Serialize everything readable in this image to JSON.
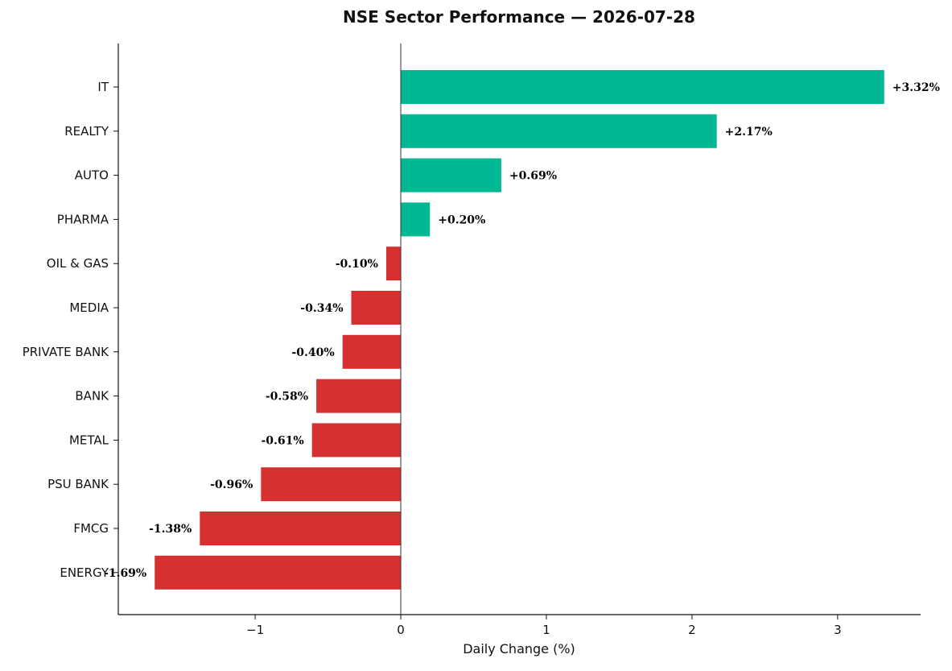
{
  "chart_data": {
    "type": "bar",
    "orientation": "horizontal",
    "title": "NSE Sector Performance — 2026-07-28",
    "xlabel": "Daily Change (%)",
    "ylabel": "",
    "categories": [
      "IT",
      "REALTY",
      "AUTO",
      "PHARMA",
      "OIL & GAS",
      "MEDIA",
      "PRIVATE BANK",
      "BANK",
      "METAL",
      "PSU BANK",
      "FMCG",
      "ENERGY"
    ],
    "values": [
      3.32,
      2.17,
      0.69,
      0.2,
      -0.1,
      -0.34,
      -0.4,
      -0.58,
      -0.61,
      -0.96,
      -1.38,
      -1.69
    ],
    "value_labels": [
      "+3.32%",
      "+2.17%",
      "+0.69%",
      "+0.20%",
      "-0.10%",
      "-0.34%",
      "-0.40%",
      "-0.58%",
      "-0.61%",
      "-0.96%",
      "-1.38%",
      "-1.69%"
    ],
    "xlim": [
      -1.94,
      3.57
    ],
    "xticks": [
      -1,
      0,
      1,
      2,
      3
    ],
    "xtick_labels": [
      "−1",
      "0",
      "1",
      "2",
      "3"
    ],
    "grid": false,
    "zero_line": true,
    "colors": {
      "positive": "#00b894",
      "negative": "#d63031"
    }
  }
}
